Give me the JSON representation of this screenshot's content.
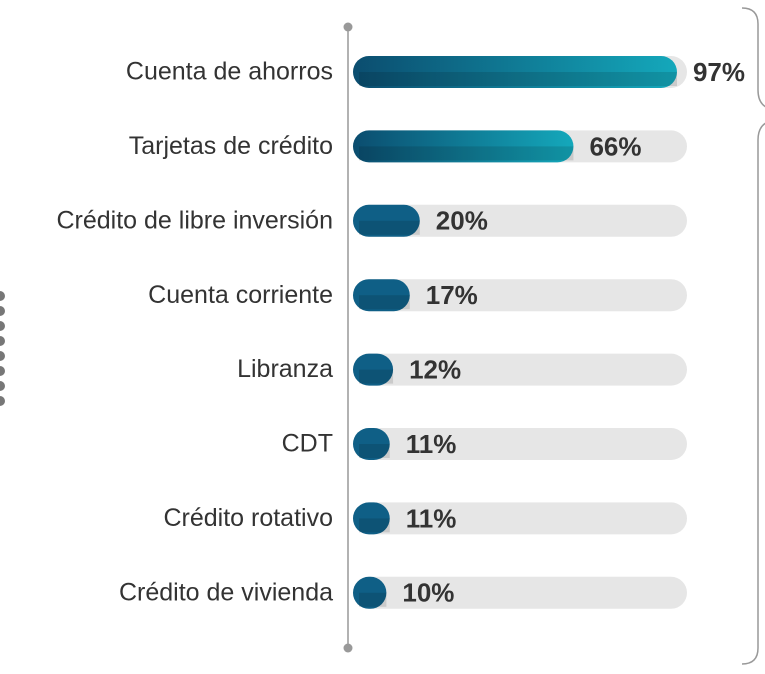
{
  "chart_data": {
    "type": "bar",
    "orientation": "horizontal",
    "categories": [
      "Cuenta de ahorros",
      "Tarjetas de crédito",
      "Crédito de libre inversión",
      "Cuenta corriente",
      "Libranza",
      "CDT",
      "Crédito rotativo",
      "Crédito de vivienda"
    ],
    "values": [
      97,
      66,
      20,
      17,
      12,
      11,
      11,
      10
    ],
    "value_labels": [
      "97%",
      "66%",
      "20%",
      "17%",
      "12%",
      "11%",
      "11%",
      "10%"
    ],
    "color": "#0f5f86",
    "xlim": [
      0,
      100
    ]
  }
}
